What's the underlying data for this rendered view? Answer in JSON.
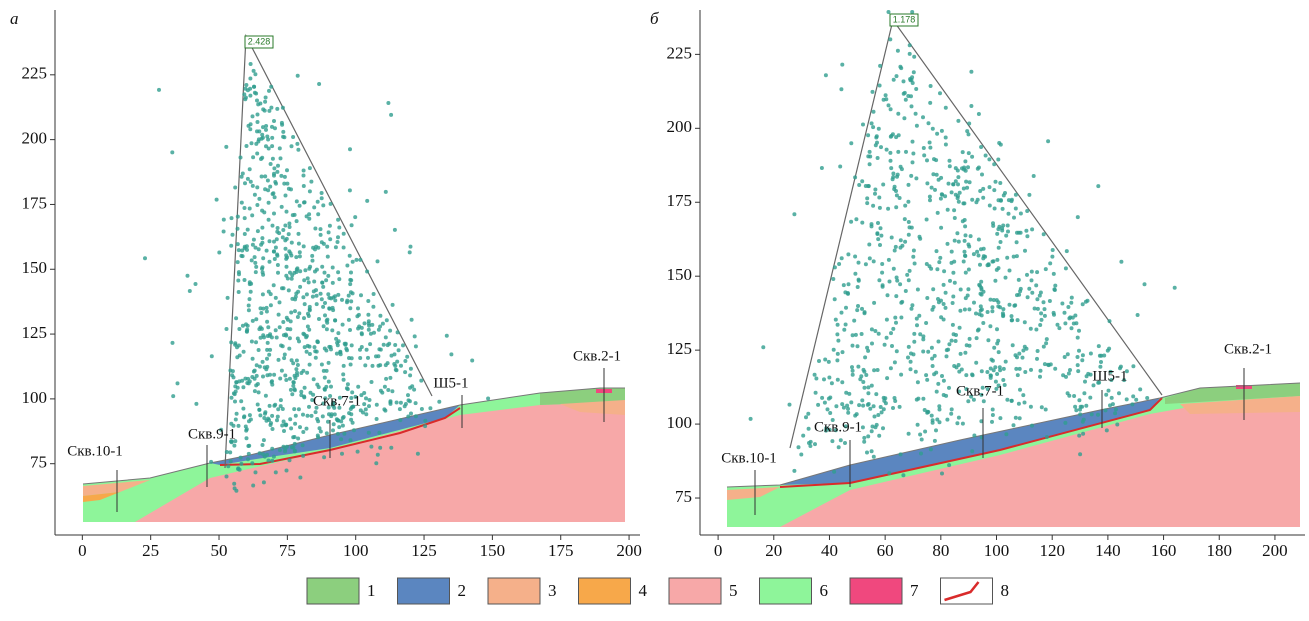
{
  "panels": [
    {
      "label": "а",
      "factor": 2.428,
      "xlim": [
        -10,
        204
      ],
      "xticks": [
        0,
        25,
        50,
        75,
        100,
        125,
        150,
        175,
        200
      ],
      "ylim": [
        47.5,
        250
      ],
      "yticks": [
        75,
        100,
        125,
        150,
        175,
        200,
        225
      ],
      "boreholes": [
        "Скв.10-1",
        "Скв.9-1",
        "Скв.7-1",
        "Ш5-1",
        "Скв.2-1"
      ]
    },
    {
      "label": "б",
      "factor": 1.178,
      "xlim": [
        -6.5,
        210.8
      ],
      "xticks": [
        0,
        20,
        40,
        60,
        80,
        100,
        120,
        140,
        160,
        180,
        200
      ],
      "ylim": [
        62.5,
        240
      ],
      "yticks": [
        75,
        100,
        125,
        150,
        175,
        200,
        225
      ],
      "boreholes": [
        "Скв.10-1",
        "Скв.9-1",
        "Скв.7-1",
        "Ш5-1",
        "Скв.2-1"
      ]
    }
  ],
  "legend": [
    {
      "label": "1",
      "color": "#8ccf7e"
    },
    {
      "label": "2",
      "color": "#5b86c0"
    },
    {
      "label": "3",
      "color": "#f5b08a"
    },
    {
      "label": "4",
      "color": "#f7a84a"
    },
    {
      "label": "5",
      "color": "#f7a8a8"
    },
    {
      "label": "6",
      "color": "#8ef59a"
    },
    {
      "label": "7",
      "color": "#f0487e"
    },
    {
      "label": "8",
      "color": "#ffffff"
    }
  ]
}
